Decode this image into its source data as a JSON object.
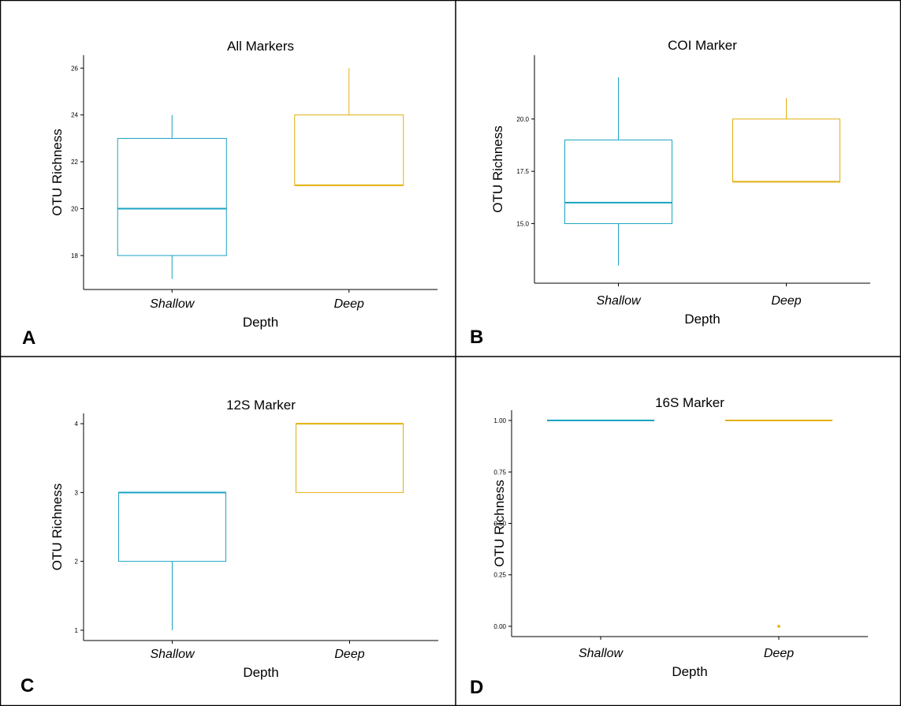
{
  "figure": {
    "panels": [
      {
        "id": "A",
        "letter": "A"
      },
      {
        "id": "B",
        "letter": "B"
      },
      {
        "id": "C",
        "letter": "C"
      },
      {
        "id": "D",
        "letter": "D"
      }
    ],
    "colors": {
      "shallow": "#1aa3c2",
      "deep": "#e2b00c",
      "frame": "#000000",
      "axis": "#000000"
    }
  },
  "chart_data": [
    {
      "type": "box",
      "title": "All Markers",
      "xlabel": "Depth",
      "ylabel": "OTU Richness",
      "categories": [
        "Shallow",
        "Deep"
      ],
      "yticks": [
        18,
        20,
        22,
        24,
        26
      ],
      "ylim": [
        16.55,
        26.55
      ],
      "boxes": [
        {
          "category": "Shallow",
          "min": 17,
          "q1": 18,
          "median": 20,
          "q3": 23,
          "max": 24,
          "outliers": []
        },
        {
          "category": "Deep",
          "min": 21,
          "q1": 21,
          "median": 21,
          "q3": 24,
          "max": 26,
          "outliers": []
        }
      ]
    },
    {
      "type": "box",
      "title": "COI Marker",
      "xlabel": "Depth",
      "ylabel": "OTU Richness",
      "categories": [
        "Shallow",
        "Deep"
      ],
      "yticks": [
        "15.0",
        "17.5",
        "20.0"
      ],
      "ylim": [
        12.15,
        23.05
      ],
      "boxes": [
        {
          "category": "Shallow",
          "min": 13,
          "q1": 15,
          "median": 16,
          "q3": 19,
          "max": 22,
          "outliers": []
        },
        {
          "category": "Deep",
          "min": 17,
          "q1": 17,
          "median": 17,
          "q3": 20,
          "max": 21,
          "outliers": []
        }
      ]
    },
    {
      "type": "box",
      "title": "12S Marker",
      "xlabel": "Depth",
      "ylabel": "OTU Richness",
      "categories": [
        "Shallow",
        "Deep"
      ],
      "yticks": [
        1,
        2,
        3,
        4
      ],
      "ylim": [
        0.85,
        4.15
      ],
      "boxes": [
        {
          "category": "Shallow",
          "min": 1,
          "q1": 2,
          "median": 3,
          "q3": 3,
          "max": 3,
          "outliers": []
        },
        {
          "category": "Deep",
          "min": 3,
          "q1": 3,
          "median": 4,
          "q3": 4,
          "max": 4,
          "outliers": []
        }
      ]
    },
    {
      "type": "box",
      "title": "16S Marker",
      "xlabel": "Depth",
      "ylabel": "OTU Richness",
      "categories": [
        "Shallow",
        "Deep"
      ],
      "yticks": [
        "0.00",
        "0.25",
        "0.50",
        "0.75",
        "1.00"
      ],
      "ylim": [
        -0.05,
        1.05
      ],
      "boxes": [
        {
          "category": "Shallow",
          "min": 1,
          "q1": 1,
          "median": 1,
          "q3": 1,
          "max": 1,
          "outliers": []
        },
        {
          "category": "Deep",
          "min": 1,
          "q1": 1,
          "median": 1,
          "q3": 1,
          "max": 1,
          "outliers": [
            0
          ]
        }
      ]
    }
  ]
}
